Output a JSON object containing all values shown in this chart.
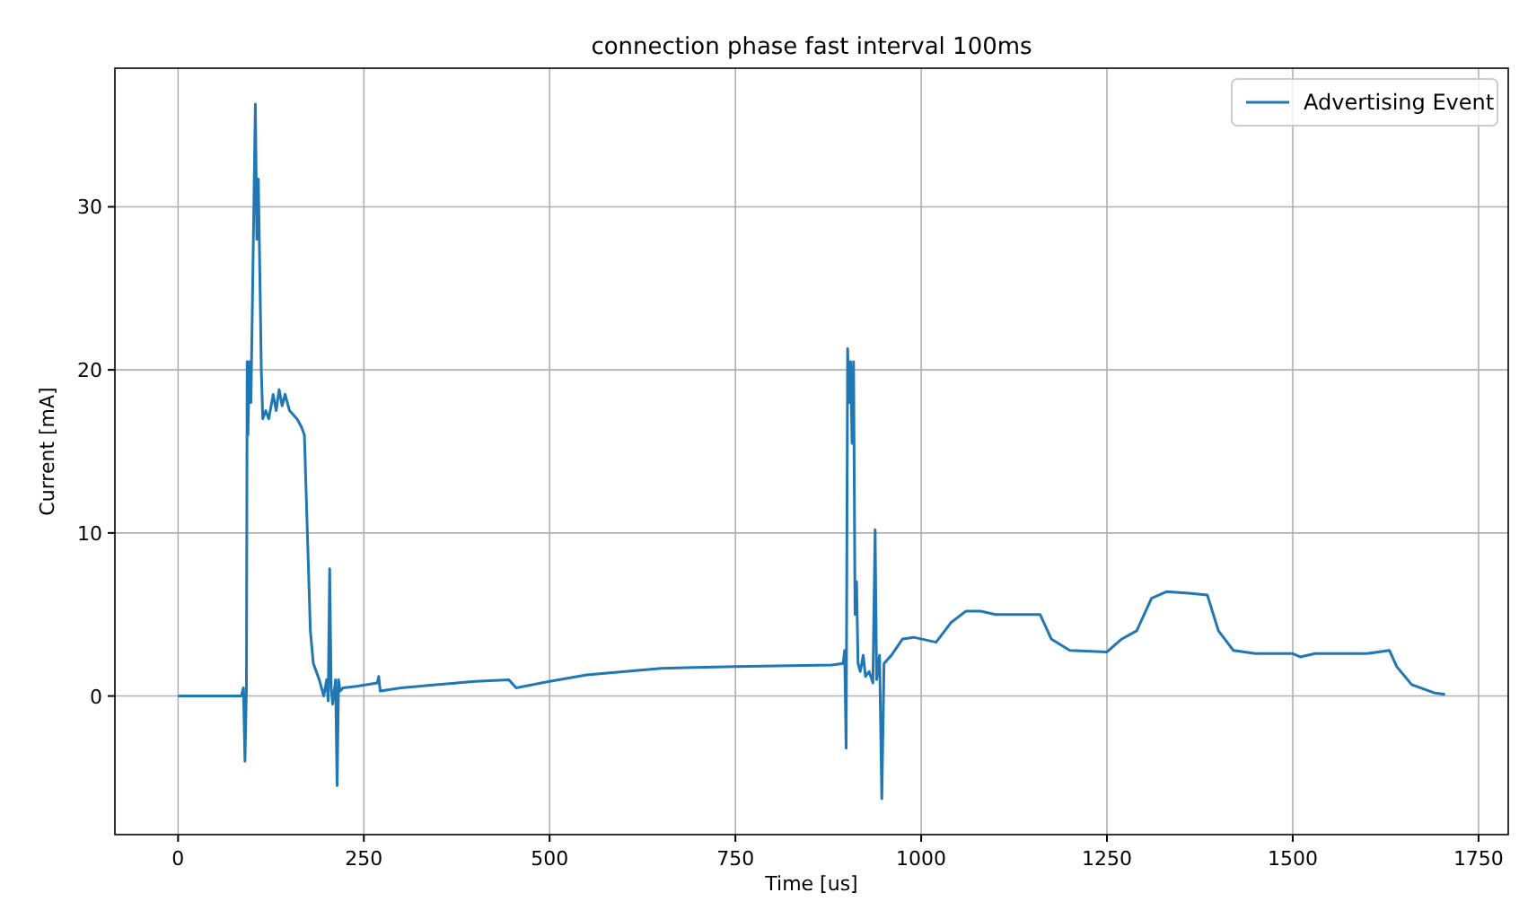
{
  "chart_data": {
    "type": "line",
    "title": "connection phase fast interval 100ms",
    "xlabel": "Time [us]",
    "ylabel": "Current [mA]",
    "xlim": [
      -85,
      1790
    ],
    "ylim": [
      -8.5,
      38.5
    ],
    "xticks": [
      0,
      250,
      500,
      750,
      1000,
      1250,
      1500,
      1750
    ],
    "yticks": [
      0,
      10,
      20,
      30
    ],
    "grid": true,
    "legend": "top right",
    "series": [
      {
        "name": "Advertising Event",
        "color": "#1f77b4",
        "x": [
          0,
          85,
          88,
          90,
          92,
          93,
          94,
          96,
          98,
          100,
          104,
          106,
          108,
          110,
          112,
          114,
          118,
          122,
          128,
          132,
          136,
          140,
          144,
          150,
          160,
          166,
          170,
          174,
          178,
          182,
          190,
          196,
          200,
          202,
          204,
          206,
          208,
          212,
          214,
          216,
          218,
          222,
          240,
          268,
          270,
          272,
          300,
          350,
          400,
          445,
          455,
          500,
          550,
          650,
          750,
          880,
          895,
          897,
          899,
          901,
          903,
          905,
          907,
          909,
          911,
          913,
          915,
          918,
          922,
          925,
          930,
          935,
          938,
          940,
          944,
          947,
          950,
          960,
          975,
          990,
          1020,
          1040,
          1060,
          1080,
          1100,
          1160,
          1175,
          1200,
          1250,
          1270,
          1290,
          1310,
          1330,
          1360,
          1385,
          1400,
          1420,
          1450,
          1500,
          1510,
          1530,
          1600,
          1630,
          1640,
          1660,
          1690,
          1705
        ],
        "values": [
          0,
          0,
          0.5,
          -4,
          0.5,
          20.5,
          16,
          20.5,
          18,
          24,
          36.3,
          28,
          31.7,
          26,
          20,
          17,
          17.5,
          17,
          18.5,
          17.5,
          18.8,
          17.8,
          18.5,
          17.5,
          17,
          16.5,
          16,
          10,
          4,
          2,
          1,
          0,
          1,
          -0.3,
          7.8,
          0.5,
          -0.5,
          1,
          -5.5,
          1,
          0.3,
          0.5,
          0.6,
          0.8,
          1.2,
          0.3,
          0.5,
          0.7,
          0.9,
          1.0,
          0.5,
          0.9,
          1.3,
          1.7,
          1.8,
          1.9,
          2,
          2.8,
          -3.2,
          21.3,
          18,
          20.5,
          15.5,
          20.5,
          5,
          7,
          2,
          1.5,
          2.5,
          1.2,
          1.5,
          0.8,
          10.2,
          1,
          2.5,
          -6.3,
          2,
          2.5,
          3.5,
          3.6,
          3.3,
          4.5,
          5.2,
          5.2,
          5.0,
          5.0,
          3.5,
          2.8,
          2.7,
          3.5,
          4,
          6,
          6.4,
          6.3,
          6.2,
          4,
          2.8,
          2.6,
          2.6,
          2.4,
          2.6,
          2.6,
          2.8,
          1.8,
          0.7,
          0.2,
          0.1
        ]
      }
    ]
  }
}
